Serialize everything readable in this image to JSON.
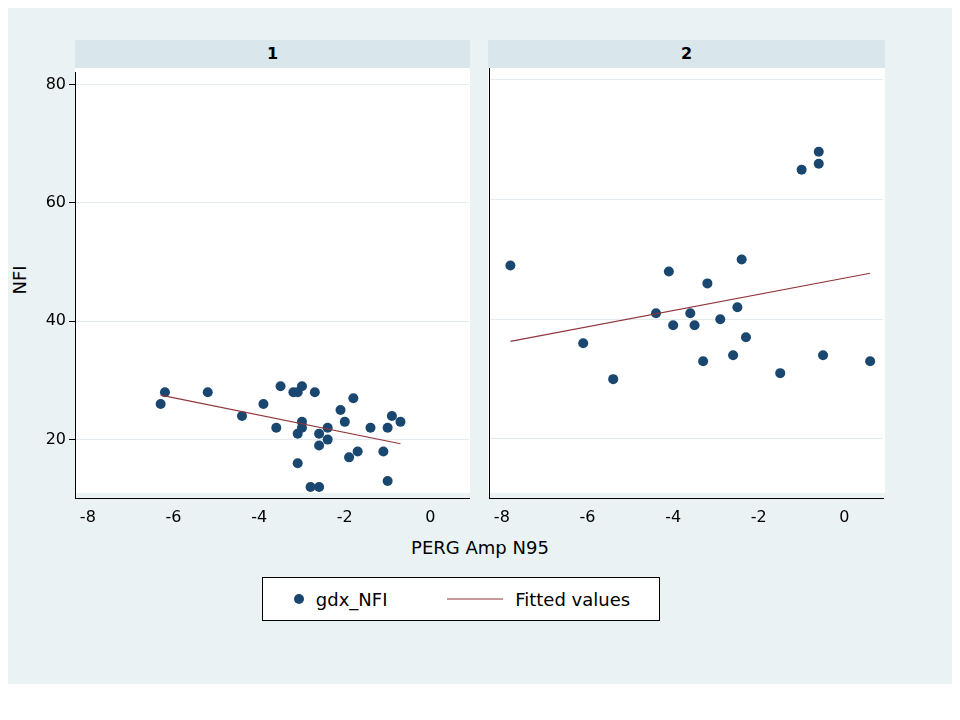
{
  "chart_data": {
    "type": "scatter",
    "x_label": "PERG  Amp N95",
    "y_label": "NFI",
    "xlim": [
      -8.3,
      0.9
    ],
    "xticks": [
      -8,
      -6,
      -4,
      -2,
      0
    ],
    "ylim": [
      10,
      82
    ],
    "yticks": [
      20,
      40,
      60,
      80
    ],
    "grid": "y",
    "legend": "bottom",
    "panels": [
      {
        "title": "1",
        "tick_labels": true,
        "series": [
          {
            "name": "gdx_NFI",
            "type": "scatter",
            "marker": "circle",
            "color": "#1a476f",
            "x": [
              -6.3,
              -6.2,
              -5.2,
              -4.4,
              -3.9,
              -3.6,
              -3.5,
              -3.2,
              -3.1,
              -3.1,
              -3.1,
              -3.0,
              -3.0,
              -3.0,
              -2.8,
              -2.7,
              -2.6,
              -2.6,
              -2.6,
              -2.4,
              -2.4,
              -2.1,
              -2.0,
              -1.9,
              -1.8,
              -1.7,
              -1.4,
              -1.1,
              -1.0,
              -1.0,
              -0.9,
              -0.7
            ],
            "values": [
              26,
              28,
              28,
              24,
              26,
              22,
              29,
              28,
              28,
              16,
              21,
              29,
              23,
              22,
              12,
              28,
              12,
              21,
              19,
              20,
              22,
              25,
              23,
              17,
              27,
              18,
              22,
              18,
              22,
              13,
              24,
              23
            ]
          },
          {
            "name": "Fitted values",
            "type": "line",
            "line_style": "solid",
            "color": "#90353b",
            "x": [
              -6.3,
              -0.7
            ],
            "values": [
              27.5,
              19.3
            ]
          }
        ]
      },
      {
        "title": "2",
        "tick_labels": "x",
        "series": [
          {
            "name": "gdx_NFI",
            "type": "scatter",
            "marker": "circle",
            "color": "#1a476f",
            "x": [
              -7.8,
              -6.1,
              -5.4,
              -4.4,
              -4.1,
              -4.0,
              -3.6,
              -3.5,
              -3.3,
              -3.2,
              -2.9,
              -2.6,
              -2.5,
              -2.4,
              -2.3,
              -1.5,
              -1.0,
              -0.6,
              -0.6,
              -0.5,
              0.6
            ],
            "values": [
              49,
              36,
              30,
              41,
              48,
              39,
              41,
              39,
              33,
              46,
              40,
              34,
              42,
              50,
              37,
              31,
              65,
              68,
              66,
              34,
              33
            ]
          },
          {
            "name": "Fitted values",
            "type": "line",
            "line_style": "solid",
            "color": "#90353b",
            "x": [
              -7.8,
              0.6
            ],
            "values": [
              36.3,
              47.7
            ]
          }
        ]
      }
    ]
  }
}
